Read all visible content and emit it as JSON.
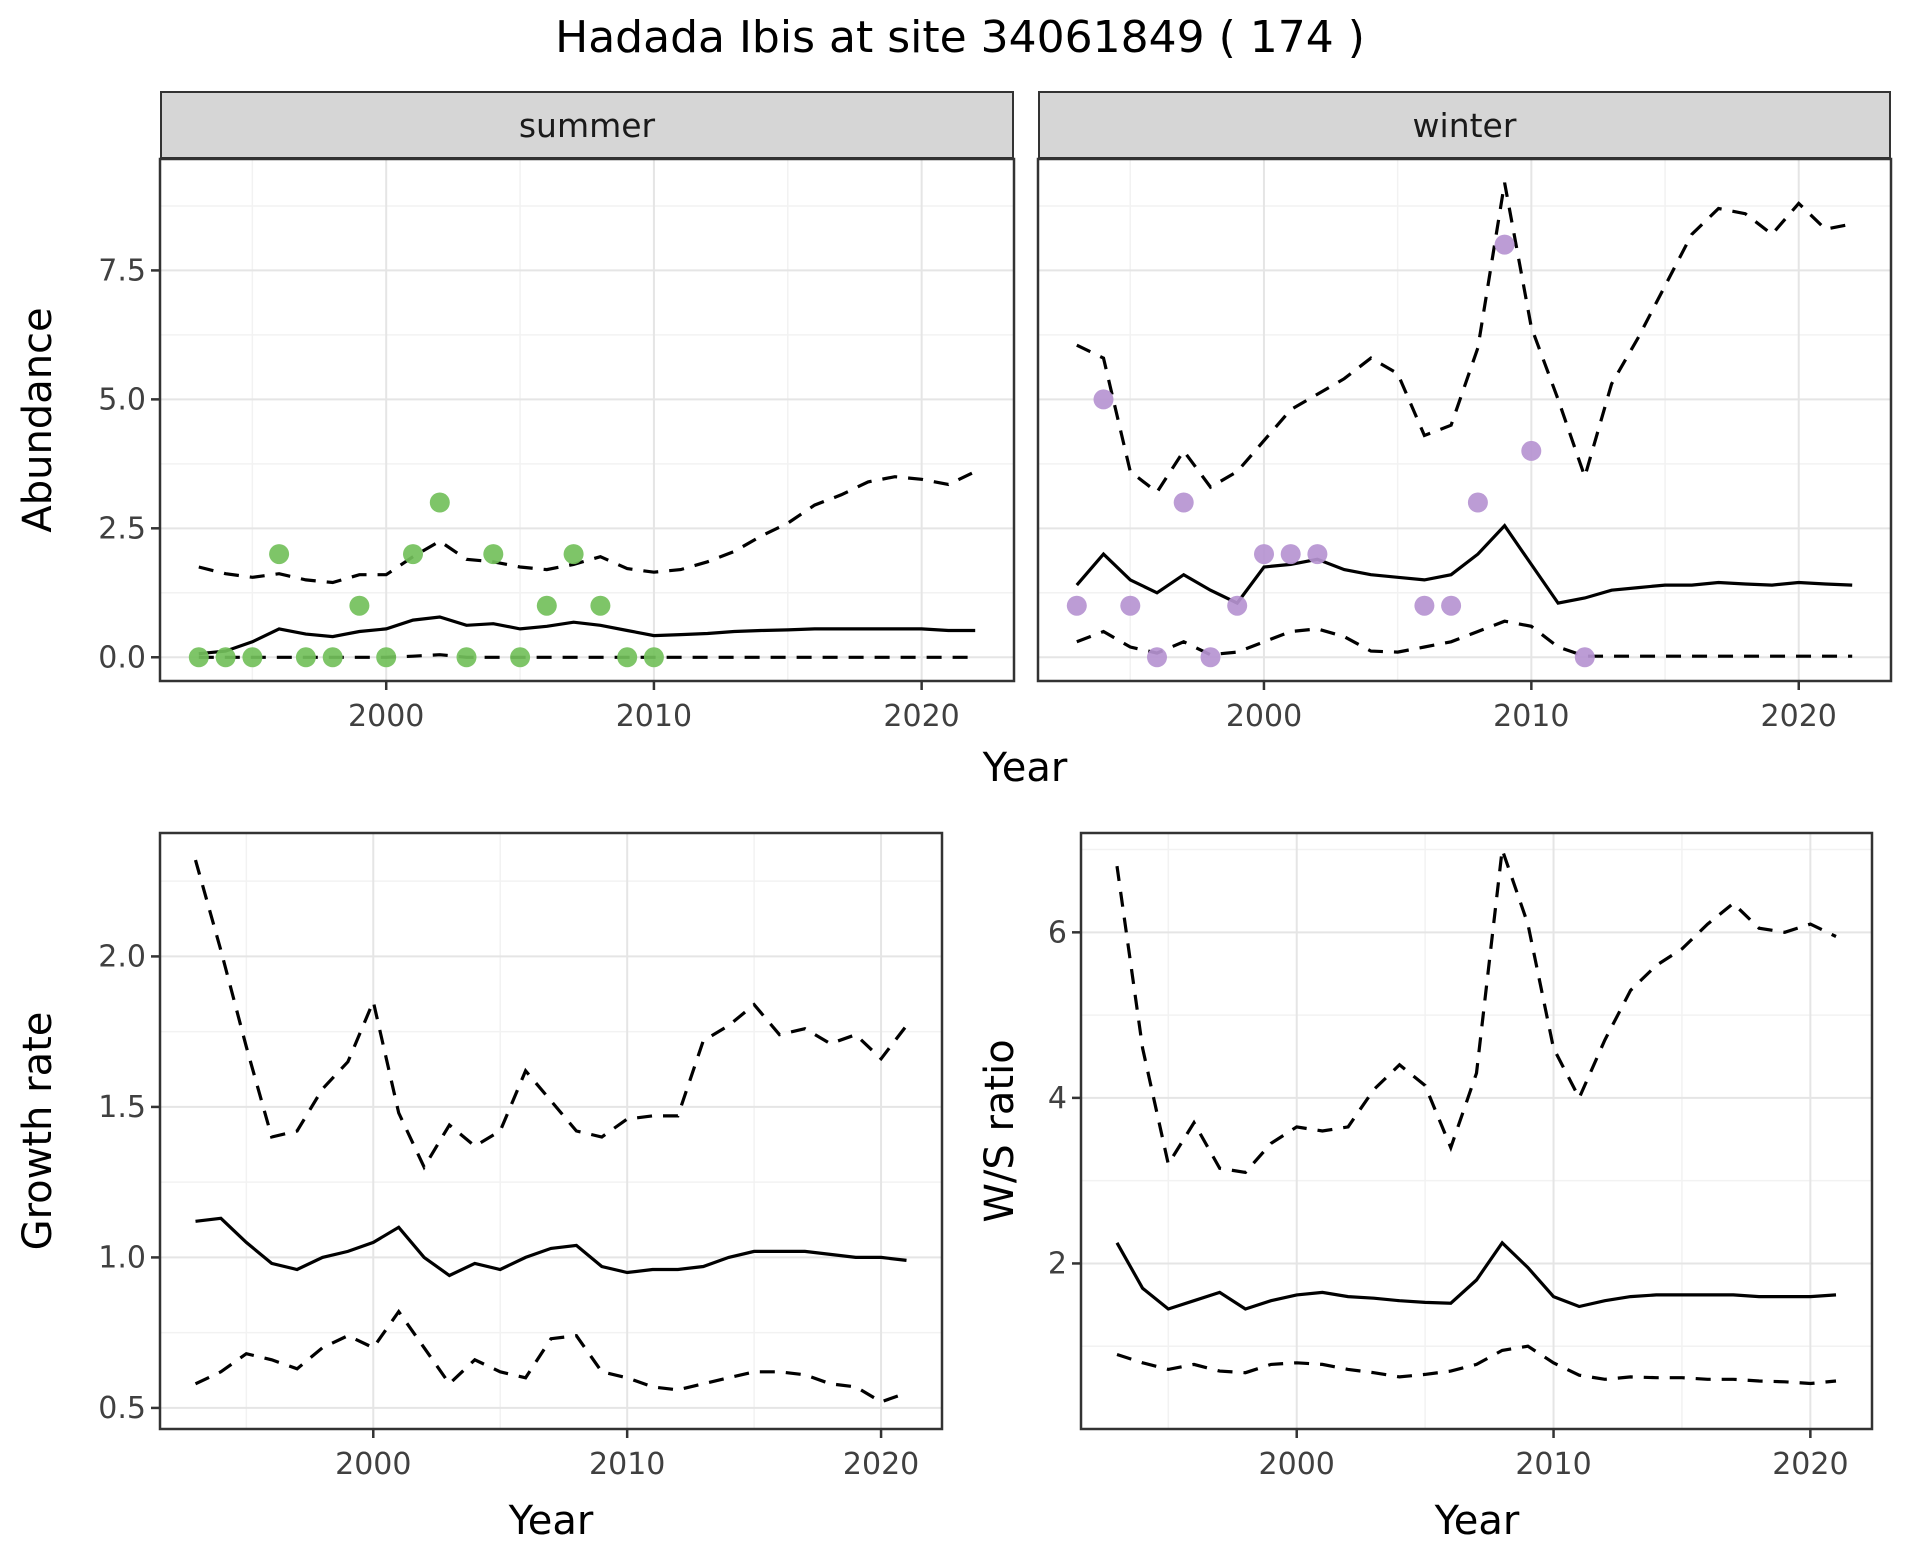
{
  "title": "Hadada Ibis at site 34061849 ( 174 )",
  "colors": {
    "summer_points": "#73c05b",
    "winter_points": "#b694d1",
    "line": "#000000",
    "grid_major": "#e5e5e5",
    "grid_minor": "#f2f2f2",
    "panel_border": "#333333",
    "strip_bg": "#d6d6d6",
    "tick_text": "#404040"
  },
  "axes": {
    "x_top": "Year",
    "x_growth": "Year",
    "x_ratio": "Year",
    "y_top": "Abundance",
    "y_growth": "Growth rate",
    "y_ratio": "W/S ratio"
  },
  "facets": [
    "summer",
    "winter"
  ],
  "chart_data": [
    {
      "id": "abundance_summer",
      "type": "line",
      "facet_label": "summer",
      "xlabel": "Year",
      "ylabel": "Abundance",
      "xlim": [
        1991.55,
        2023.45
      ],
      "ylim": [
        -0.46,
        9.66
      ],
      "xticks": [
        2000,
        2010,
        2020
      ],
      "xminor": [
        1995,
        2005,
        2015
      ],
      "yticks": [
        0.0,
        2.5,
        5.0,
        7.5
      ],
      "ytick_labels": [
        "0.0",
        "2.5",
        "5.0",
        "7.5"
      ],
      "yminor": [
        1.25,
        3.75,
        6.25,
        8.75
      ],
      "x": [
        1993,
        1994,
        1995,
        1996,
        1997,
        1998,
        1999,
        2000,
        2001,
        2002,
        2003,
        2004,
        2005,
        2006,
        2007,
        2008,
        2009,
        2010,
        2011,
        2012,
        2013,
        2014,
        2015,
        2016,
        2017,
        2018,
        2019,
        2020,
        2021,
        2022
      ],
      "series": [
        {
          "name": "upper_95ci",
          "style": "dashed",
          "values": [
            1.75,
            1.62,
            1.55,
            1.62,
            1.5,
            1.45,
            1.6,
            1.6,
            1.95,
            2.25,
            1.9,
            1.85,
            1.75,
            1.7,
            1.8,
            1.95,
            1.72,
            1.65,
            1.7,
            1.85,
            2.05,
            2.35,
            2.6,
            2.95,
            3.15,
            3.4,
            3.5,
            3.45,
            3.35,
            3.6
          ]
        },
        {
          "name": "mean",
          "style": "solid",
          "values": [
            0.07,
            0.12,
            0.3,
            0.55,
            0.45,
            0.4,
            0.5,
            0.55,
            0.72,
            0.78,
            0.62,
            0.65,
            0.55,
            0.6,
            0.68,
            0.62,
            0.52,
            0.42,
            0.44,
            0.46,
            0.5,
            0.52,
            0.53,
            0.55,
            0.55,
            0.55,
            0.55,
            0.55,
            0.52,
            0.52
          ]
        },
        {
          "name": "lower_95ci",
          "style": "dashed",
          "values": [
            0,
            0,
            0,
            0,
            0,
            0,
            0,
            0,
            0.02,
            0.05,
            0,
            0,
            0,
            0,
            0,
            0,
            0,
            0,
            0,
            0,
            0,
            0,
            0,
            0,
            0,
            0,
            0,
            0,
            0,
            0
          ]
        }
      ],
      "points": {
        "name": "observed_counts",
        "color": "#73c05b",
        "x": [
          1993,
          1994,
          1995,
          1996,
          1997,
          1998,
          1999,
          2000,
          2001,
          2002,
          2003,
          2004,
          2005,
          2006,
          2007,
          2008,
          2009,
          2010
        ],
        "y": [
          0,
          0,
          0,
          2,
          0,
          0,
          1,
          0,
          2,
          3,
          0,
          2,
          0,
          1,
          2,
          1,
          0,
          0
        ]
      }
    },
    {
      "id": "abundance_winter",
      "type": "line",
      "facet_label": "winter",
      "xlabel": "Year",
      "ylabel": "Abundance",
      "xlim": [
        1991.55,
        2023.45
      ],
      "ylim": [
        -0.46,
        9.66
      ],
      "xticks": [
        2000,
        2010,
        2020
      ],
      "xminor": [
        1995,
        2005,
        2015
      ],
      "yticks": [
        0.0,
        2.5,
        5.0,
        7.5
      ],
      "ytick_labels": [
        "0.0",
        "2.5",
        "5.0",
        "7.5"
      ],
      "yminor": [
        1.25,
        3.75,
        6.25,
        8.75
      ],
      "x": [
        1993,
        1994,
        1995,
        1996,
        1997,
        1998,
        1999,
        2000,
        2001,
        2002,
        2003,
        2004,
        2005,
        2006,
        2007,
        2008,
        2009,
        2010,
        2011,
        2012,
        2013,
        2014,
        2015,
        2016,
        2017,
        2018,
        2019,
        2020,
        2021,
        2022
      ],
      "series": [
        {
          "name": "upper_95ci",
          "style": "dashed",
          "values": [
            6.05,
            5.8,
            3.6,
            3.2,
            4.0,
            3.3,
            3.6,
            4.2,
            4.8,
            5.1,
            5.4,
            5.8,
            5.5,
            4.3,
            4.5,
            6.0,
            9.2,
            6.4,
            5.0,
            3.5,
            5.3,
            6.2,
            7.2,
            8.2,
            8.7,
            8.6,
            8.2,
            8.8,
            8.3,
            8.4
          ]
        },
        {
          "name": "mean",
          "style": "solid",
          "values": [
            1.4,
            2.0,
            1.5,
            1.25,
            1.6,
            1.3,
            1.05,
            1.75,
            1.8,
            1.9,
            1.7,
            1.6,
            1.55,
            1.5,
            1.6,
            2.0,
            2.55,
            1.8,
            1.05,
            1.15,
            1.3,
            1.35,
            1.4,
            1.4,
            1.45,
            1.42,
            1.4,
            1.45,
            1.42,
            1.4
          ]
        },
        {
          "name": "lower_95ci",
          "style": "dashed",
          "values": [
            0.3,
            0.5,
            0.2,
            0.08,
            0.3,
            0.05,
            0.1,
            0.3,
            0.5,
            0.55,
            0.4,
            0.12,
            0.1,
            0.2,
            0.3,
            0.5,
            0.7,
            0.6,
            0.2,
            0.02,
            0.02,
            0.02,
            0.02,
            0.02,
            0.02,
            0.02,
            0.02,
            0.02,
            0.02,
            0.02
          ]
        }
      ],
      "points": {
        "name": "observed_counts",
        "color": "#b694d1",
        "x": [
          1993,
          1994,
          1995,
          1996,
          1997,
          1998,
          1999,
          2000,
          2001,
          2002,
          2006,
          2007,
          2008,
          2009,
          2010,
          2012
        ],
        "y": [
          1,
          5,
          1,
          0,
          3,
          0,
          1,
          2,
          2,
          2,
          1,
          1,
          3,
          8,
          4,
          0
        ]
      }
    },
    {
      "id": "growth_rate",
      "type": "line",
      "facet_label": "",
      "xlabel": "Year",
      "ylabel": "Growth rate",
      "xlim": [
        1991.6,
        2022.4
      ],
      "ylim": [
        0.43,
        2.41
      ],
      "xticks": [
        2000,
        2010,
        2020
      ],
      "xminor": [
        1995,
        2005,
        2015
      ],
      "yticks": [
        0.5,
        1.0,
        1.5,
        2.0
      ],
      "ytick_labels": [
        "0.5",
        "1.0",
        "1.5",
        "2.0"
      ],
      "yminor": [
        0.75,
        1.25,
        1.75,
        2.25
      ],
      "x": [
        1993,
        1994,
        1995,
        1996,
        1997,
        1998,
        1999,
        2000,
        2001,
        2002,
        2003,
        2004,
        2005,
        2006,
        2007,
        2008,
        2009,
        2010,
        2011,
        2012,
        2013,
        2014,
        2015,
        2016,
        2017,
        2018,
        2019,
        2020,
        2021
      ],
      "series": [
        {
          "name": "upper_95ci",
          "style": "dashed",
          "values": [
            2.32,
            2.02,
            1.7,
            1.4,
            1.42,
            1.56,
            1.65,
            1.85,
            1.48,
            1.3,
            1.44,
            1.37,
            1.42,
            1.62,
            1.52,
            1.42,
            1.4,
            1.46,
            1.47,
            1.47,
            1.72,
            1.77,
            1.84,
            1.74,
            1.76,
            1.71,
            1.74,
            1.66,
            1.77
          ]
        },
        {
          "name": "mean",
          "style": "solid",
          "values": [
            1.12,
            1.13,
            1.05,
            0.98,
            0.96,
            1.0,
            1.02,
            1.05,
            1.1,
            1.0,
            0.94,
            0.98,
            0.96,
            1.0,
            1.03,
            1.04,
            0.97,
            0.95,
            0.96,
            0.96,
            0.97,
            1.0,
            1.02,
            1.02,
            1.02,
            1.01,
            1.0,
            1.0,
            0.99
          ]
        },
        {
          "name": "lower_95ci",
          "style": "dashed",
          "values": [
            0.58,
            0.62,
            0.68,
            0.66,
            0.63,
            0.7,
            0.74,
            0.7,
            0.82,
            0.7,
            0.58,
            0.66,
            0.62,
            0.6,
            0.73,
            0.74,
            0.62,
            0.6,
            0.57,
            0.56,
            0.58,
            0.6,
            0.62,
            0.62,
            0.61,
            0.58,
            0.57,
            0.52,
            0.55
          ]
        }
      ]
    },
    {
      "id": "ws_ratio",
      "type": "line",
      "facet_label": "",
      "xlabel": "Year",
      "ylabel": "W/S ratio",
      "xlim": [
        1991.6,
        2022.4
      ],
      "ylim": [
        0.0,
        7.2
      ],
      "xticks": [
        2000,
        2010,
        2020
      ],
      "xminor": [
        1995,
        2005,
        2015
      ],
      "yticks": [
        2,
        4,
        6
      ],
      "ytick_labels": [
        "2",
        "4",
        "6"
      ],
      "yminor": [
        1,
        3,
        5,
        7
      ],
      "x": [
        1993,
        1994,
        1995,
        1996,
        1997,
        1998,
        1999,
        2000,
        2001,
        2002,
        2003,
        2004,
        2005,
        2006,
        2007,
        2008,
        2009,
        2010,
        2011,
        2012,
        2013,
        2014,
        2015,
        2016,
        2017,
        2018,
        2019,
        2020,
        2021
      ],
      "series": [
        {
          "name": "upper_95ci",
          "style": "dashed",
          "values": [
            6.8,
            4.6,
            3.2,
            3.7,
            3.15,
            3.1,
            3.45,
            3.65,
            3.6,
            3.65,
            4.1,
            4.4,
            4.15,
            3.4,
            4.3,
            7.0,
            6.1,
            4.6,
            4.0,
            4.7,
            5.3,
            5.6,
            5.8,
            6.1,
            6.35,
            6.05,
            6.0,
            6.1,
            5.95
          ]
        },
        {
          "name": "mean",
          "style": "solid",
          "values": [
            2.25,
            1.7,
            1.45,
            1.55,
            1.65,
            1.45,
            1.55,
            1.62,
            1.65,
            1.6,
            1.58,
            1.55,
            1.53,
            1.52,
            1.8,
            2.25,
            1.95,
            1.6,
            1.48,
            1.55,
            1.6,
            1.62,
            1.62,
            1.62,
            1.62,
            1.6,
            1.6,
            1.6,
            1.62
          ]
        },
        {
          "name": "lower_95ci",
          "style": "dashed",
          "values": [
            0.9,
            0.8,
            0.72,
            0.78,
            0.7,
            0.68,
            0.78,
            0.8,
            0.78,
            0.72,
            0.68,
            0.63,
            0.66,
            0.7,
            0.78,
            0.95,
            1.0,
            0.8,
            0.65,
            0.6,
            0.63,
            0.62,
            0.62,
            0.6,
            0.6,
            0.58,
            0.57,
            0.55,
            0.58
          ]
        }
      ]
    }
  ]
}
